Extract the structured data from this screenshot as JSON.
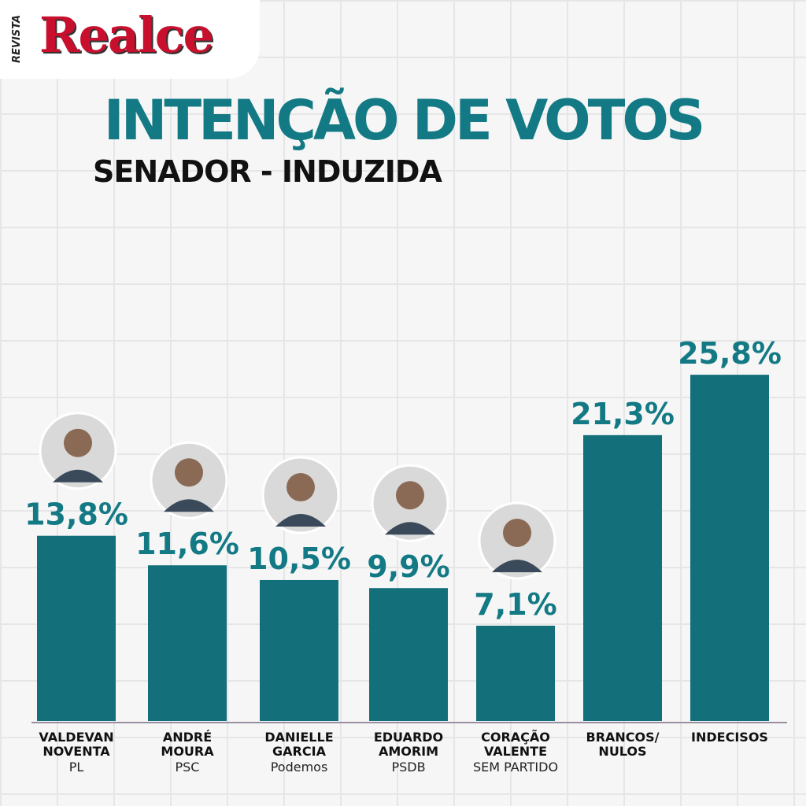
{
  "chart_data": {
    "type": "bar",
    "brand_prefix": "REVISTA",
    "brand": "Realce",
    "title": "INTENÇÃO DE VOTOS",
    "subtitle": "SENADOR - INDUZIDA",
    "categories": [
      "VALDEVAN NOVENTA",
      "ANDRÉ MOURA",
      "DANIELLE GARCIA",
      "EDUARDO AMORIM",
      "CORAÇÃO VALENTE",
      "BRANCOS/ NULOS",
      "INDECISOS"
    ],
    "parties": [
      "PL",
      "PSC",
      "Podemos",
      "PSDB",
      "SEM PARTIDO",
      null,
      null
    ],
    "values": [
      13.8,
      11.6,
      10.5,
      9.9,
      7.1,
      21.3,
      25.8
    ],
    "value_labels": [
      "13,8%",
      "11,6%",
      "10,5%",
      "9,9%",
      "7,1%",
      "21,3%",
      "25,8%"
    ],
    "color": "#136f7a"
  }
}
